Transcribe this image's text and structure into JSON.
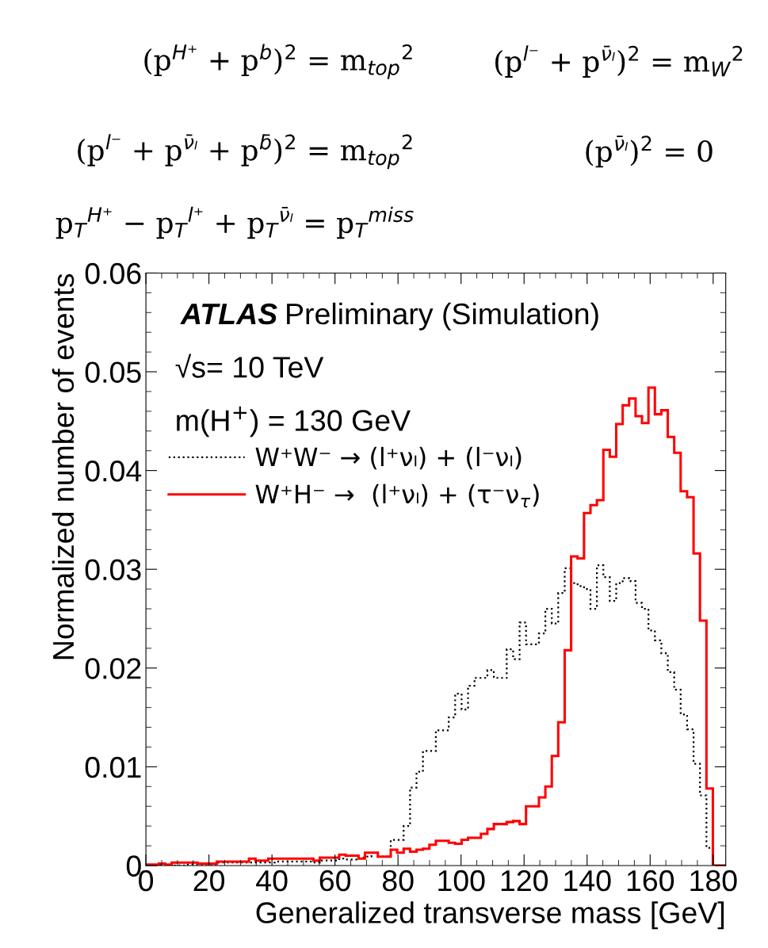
{
  "chart_data": {
    "type": "histogram",
    "xlabel": "Generalized transverse mass [GeV]",
    "ylabel": "Normalized number of events",
    "annotations": [
      "ATLAS",
      "Preliminary (Simulation)",
      "√s= 10 TeV",
      "m(H$^{+}$) = 130 GeV",
      "(p$^{H⁺}$ + p$^{b}$)$^{2}$ = m$_{top}$$^{2}$",
      "(p$^{l⁻}$ + p$^{ν̄ₗ}$)$^{2}$ = m$_{W}$$^{2}$",
      "(p$^{l⁻}$ + p$^{ν̄ₗ}$ + p$^{b̄}$)$^{2}$ = m$_{top}$$^{2}$",
      "(p$^{ν̄ₗ}$)$^{2}$ = 0",
      "p$_{T}$$^{H⁺}$ − p$_{T}$$^{l⁺}$ + p$_{T}$$^{ν̄ₗ}$ = p$_{T}$$^{miss}$"
    ],
    "bins": [
      0,
      2.04,
      4.09,
      6.13,
      8.18,
      10.22,
      12.27,
      14.31,
      16.36,
      18.4,
      20.44,
      22.49,
      24.53,
      26.58,
      28.62,
      30.67,
      32.71,
      34.76,
      36.8,
      38.84,
      40.89,
      42.93,
      44.98,
      47.02,
      49.07,
      51.11,
      53.16,
      55.2,
      57.24,
      59.29,
      61.33,
      63.38,
      65.42,
      67.47,
      69.51,
      71.56,
      73.6,
      75.64,
      77.69,
      79.73,
      81.78,
      83.82,
      85.87,
      87.91,
      89.96,
      92,
      94.04,
      96.09,
      98.13,
      100.18,
      102.22,
      104.27,
      106.31,
      108.36,
      110.4,
      112.44,
      114.49,
      116.53,
      118.58,
      120.62,
      122.67,
      124.71,
      126.76,
      128.8,
      130.84,
      132.89,
      134.93,
      136.98,
      139.02,
      141.07,
      143.11,
      145.16,
      147.2,
      149.24,
      151.29,
      153.33,
      155.38,
      157.42,
      159.47,
      161.51,
      163.56,
      165.6,
      167.64,
      169.69,
      171.73,
      173.78,
      175.82,
      177.87,
      179.91,
      181.96,
      184
    ],
    "series": [
      {
        "name": "W⁺W⁻ → (l⁺νₗ) + (l⁻νₗ)",
        "color": "#000000",
        "line_style": "dotted",
        "values": [
          0,
          0,
          0,
          0,
          0,
          0,
          0.0001,
          0.0001,
          0.0001,
          0.0001,
          0.0001,
          0.0003,
          0.0003,
          0.0003,
          0.0003,
          0.0003,
          0.0003,
          0.0003,
          0.0003,
          0.0003,
          0.0004,
          0.0004,
          0.0004,
          0.0004,
          0.0004,
          0.0004,
          0.0003,
          0.0005,
          0.0005,
          0.0005,
          0.0007,
          0.0006,
          0.0006,
          0.0008,
          0.0009,
          0.0013,
          0.0009,
          0.0009,
          0.0026,
          0.0026,
          0.004,
          0.0079,
          0.0095,
          0.0116,
          0.0116,
          0.0137,
          0.0137,
          0.015,
          0.0174,
          0.0158,
          0.0182,
          0.019,
          0.019,
          0.0198,
          0.019,
          0.019,
          0.0219,
          0.0209,
          0.0246,
          0.0224,
          0.0224,
          0.0235,
          0.026,
          0.0245,
          0.0276,
          0.0301,
          0.0286,
          0.0283,
          0.028,
          0.026,
          0.0304,
          0.0292,
          0.0268,
          0.0286,
          0.0291,
          0.0288,
          0.0266,
          0.026,
          0.0238,
          0.0228,
          0.0215,
          0.0196,
          0.0178,
          0.0153,
          0.0138,
          0.0103,
          0.0071,
          0.0018,
          0,
          0
        ]
      },
      {
        "name": "W⁺H⁻ →  (l⁺νₗ) + (τ⁻ν$_{τ}$)",
        "color": "#ff0000",
        "line_style": "solid",
        "values": [
          0.0001,
          0.0001,
          0.0002,
          0.0001,
          0.0003,
          0.0003,
          0.0003,
          0.0003,
          0.0002,
          0.0002,
          0.0002,
          0.0004,
          0.0004,
          0.0004,
          0.0004,
          0.0004,
          0.0007,
          0.0005,
          0.0005,
          0.0007,
          0.0007,
          0.0007,
          0.0007,
          0.0007,
          0.0007,
          0.0007,
          0.0005,
          0.0008,
          0.0008,
          0.0008,
          0.0011,
          0.001,
          0.001,
          0.0007,
          0.0013,
          0.0013,
          0.0009,
          0.0009,
          0.0016,
          0.0013,
          0.0017,
          0.0014,
          0.0016,
          0.0017,
          0.0021,
          0.0025,
          0.0025,
          0.0023,
          0.0022,
          0.0026,
          0.0028,
          0.0028,
          0.0032,
          0.0037,
          0.0042,
          0.0042,
          0.0044,
          0.0045,
          0.0042,
          0.006,
          0.006,
          0.0069,
          0.008,
          0.0111,
          0.0145,
          0.0218,
          0.0313,
          0.0311,
          0.0357,
          0.0365,
          0.037,
          0.0421,
          0.0414,
          0.0447,
          0.0466,
          0.0473,
          0.0455,
          0.0448,
          0.0484,
          0.0457,
          0.0461,
          0.0434,
          0.0418,
          0.0379,
          0.0373,
          0.0316,
          0.0248,
          0.0078,
          0,
          0
        ]
      }
    ],
    "xlim": [
      0,
      184
    ],
    "xticks": [
      0,
      20,
      40,
      60,
      80,
      100,
      120,
      140,
      160,
      180
    ],
    "ylim": [
      0,
      0.06
    ],
    "yticks": [
      0,
      0.01,
      0.02,
      0.03,
      0.04,
      0.05,
      0.06
    ],
    "legend": "top left"
  }
}
